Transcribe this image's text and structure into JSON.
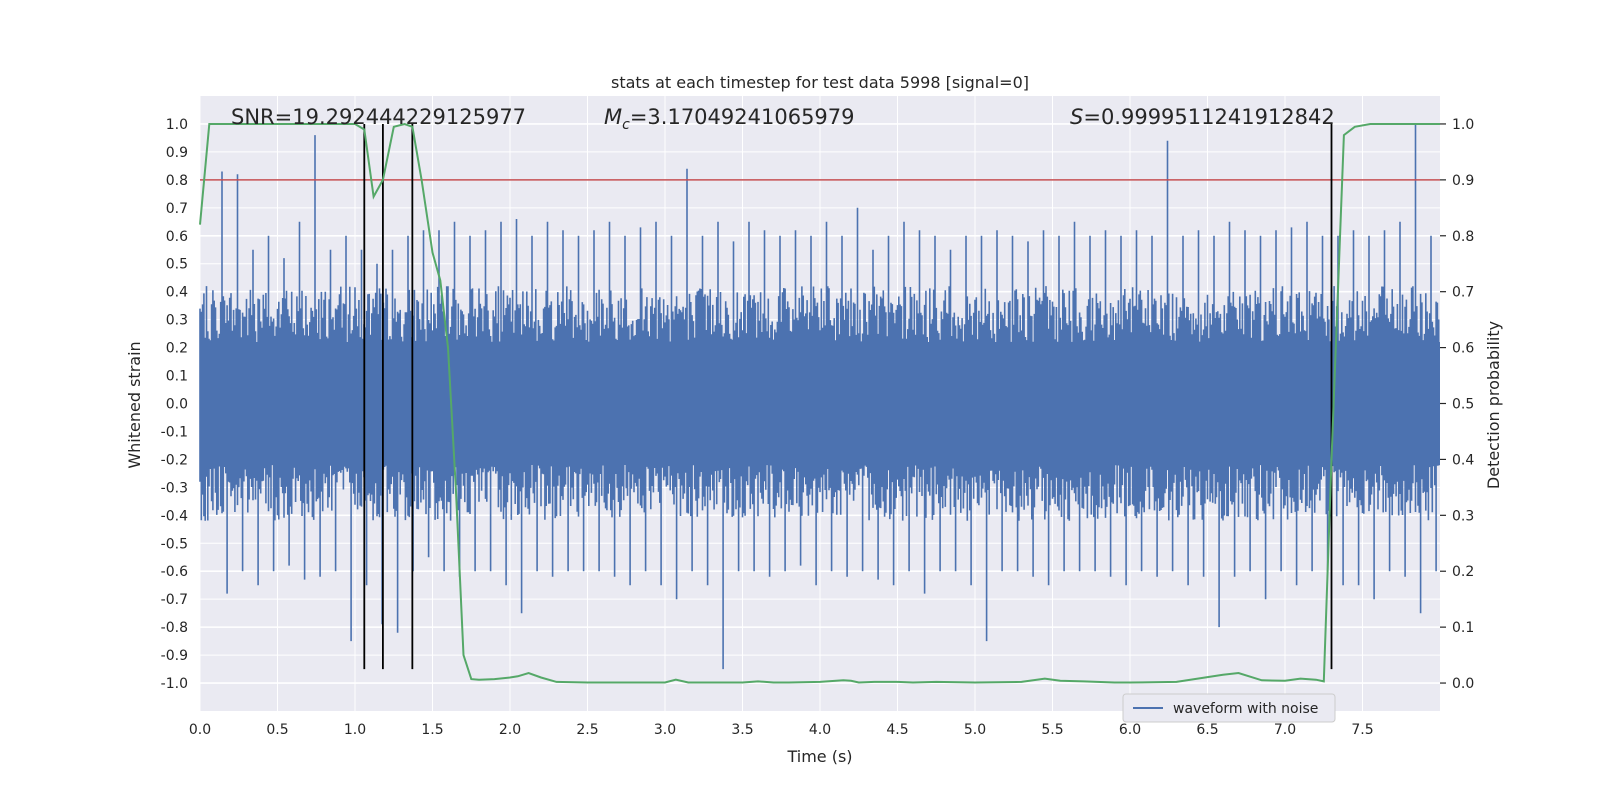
{
  "chart_data": {
    "type": "line",
    "title": "stats at each timestep for test data 5998 [signal=0]",
    "xlabel": "Time (s)",
    "ylabel": "Whitened strain",
    "ylabel_right": "Detection probability",
    "xlim": [
      0.0,
      8.0
    ],
    "ylim": [
      -1.1,
      1.1
    ],
    "ylim_right": [
      -0.05,
      1.05
    ],
    "x_ticks": [
      "0.0",
      "0.5",
      "1.0",
      "1.5",
      "2.0",
      "2.5",
      "3.0",
      "3.5",
      "4.0",
      "4.5",
      "5.0",
      "5.5",
      "6.0",
      "6.5",
      "7.0",
      "7.5"
    ],
    "y_ticks": [
      "1.0",
      "0.9",
      "0.8",
      "0.7",
      "0.6",
      "0.5",
      "0.4",
      "0.3",
      "0.2",
      "0.1",
      "0.0",
      "-0.1",
      "-0.2",
      "-0.3",
      "-0.4",
      "-0.5",
      "-0.6",
      "-0.7",
      "-0.8",
      "-0.9",
      "-1.0"
    ],
    "y_ticks_right": [
      "1.0",
      "0.9",
      "0.8",
      "0.7",
      "0.6",
      "0.5",
      "0.4",
      "0.3",
      "0.2",
      "0.1",
      "0.0"
    ],
    "annotations": {
      "snr": "SNR=19.292444229125977",
      "mc_symbol": "M",
      "mc_sub": "c",
      "mc_value": "=3.17049241065979",
      "s_symbol": "S",
      "s_value": "=0.9999511241912842"
    },
    "legend": {
      "label": "waveform with noise",
      "location": "lower right"
    },
    "threshold": {
      "value": 0.9,
      "axis": "right",
      "color": "#c44e52"
    },
    "vlines": [
      1.06,
      1.18,
      1.37,
      7.3
    ],
    "vline_ymin": -0.95,
    "vline_ymax": 1.0,
    "series": [
      {
        "name": "waveform with noise",
        "axis": "left",
        "color": "#4c72b0",
        "envelope_max": [
          0.42,
          0.83,
          0.82,
          0.55,
          0.6,
          0.52,
          0.65,
          0.96,
          0.55,
          0.6,
          0.55,
          0.5,
          0.55,
          0.6,
          0.62,
          0.62,
          0.65,
          0.6,
          0.62,
          0.65,
          0.66,
          0.6,
          0.65,
          0.62,
          0.6,
          0.62,
          0.65,
          0.6,
          0.63,
          0.65,
          0.6,
          0.84,
          0.6,
          0.65,
          0.58,
          0.65,
          0.62,
          0.6,
          0.62,
          0.6,
          0.65,
          0.6,
          0.7,
          0.55,
          0.6,
          0.65,
          0.62,
          0.6,
          0.55,
          0.6,
          0.6,
          0.62,
          0.6,
          0.58,
          0.62,
          0.6,
          0.65,
          0.6,
          0.62,
          0.6,
          0.62,
          0.6,
          0.94,
          0.6,
          0.62,
          0.6,
          0.65,
          0.62,
          0.6,
          0.62,
          0.63,
          0.65,
          0.6,
          0.6,
          0.62,
          0.6,
          0.62,
          0.65,
          1.0,
          0.6
        ],
        "envelope_min": [
          -0.35,
          -0.68,
          -0.6,
          -0.65,
          -0.6,
          -0.58,
          -0.63,
          -0.62,
          -0.6,
          -0.85,
          -0.65,
          -0.79,
          -0.82,
          -0.6,
          -0.55,
          -0.6,
          -0.62,
          -0.6,
          -0.6,
          -0.65,
          -0.75,
          -0.6,
          -0.62,
          -0.6,
          -0.6,
          -0.6,
          -0.62,
          -0.65,
          -0.6,
          -0.65,
          -0.7,
          -0.6,
          -0.65,
          -0.95,
          -0.6,
          -0.6,
          -0.62,
          -0.6,
          -0.58,
          -0.65,
          -0.6,
          -0.62,
          -0.6,
          -0.63,
          -0.65,
          -0.6,
          -0.68,
          -0.6,
          -0.6,
          -0.65,
          -0.85,
          -0.6,
          -0.6,
          -0.62,
          -0.65,
          -0.6,
          -0.6,
          -0.6,
          -0.62,
          -0.65,
          -0.6,
          -0.62,
          -0.6,
          -0.65,
          -0.62,
          -0.8,
          -0.62,
          -0.6,
          -0.7,
          -0.6,
          -0.65,
          -0.6,
          -0.6,
          -0.65,
          -0.65,
          -0.7,
          -0.6,
          -0.62,
          -0.75,
          -0.6
        ],
        "core_amplitude": 0.4
      },
      {
        "name": "detection probability",
        "axis": "right",
        "color": "#55a868",
        "x": [
          0.0,
          0.06,
          0.12,
          0.2,
          0.3,
          0.4,
          0.5,
          0.6,
          0.7,
          0.8,
          0.9,
          1.0,
          1.06,
          1.12,
          1.18,
          1.25,
          1.32,
          1.37,
          1.43,
          1.5,
          1.55,
          1.6,
          1.65,
          1.7,
          1.75,
          1.8,
          1.9,
          2.0,
          2.05,
          2.12,
          2.2,
          2.3,
          2.5,
          2.8,
          3.0,
          3.07,
          3.15,
          3.3,
          3.5,
          3.6,
          3.7,
          3.8,
          4.0,
          4.15,
          4.2,
          4.25,
          4.35,
          4.5,
          4.6,
          4.75,
          5.0,
          5.3,
          5.45,
          5.55,
          5.7,
          5.9,
          6.0,
          6.3,
          6.6,
          6.7,
          6.85,
          7.0,
          7.1,
          7.2,
          7.25,
          7.3,
          7.38,
          7.45,
          7.55,
          7.65,
          7.75,
          7.85,
          7.95,
          8.0
        ],
        "y": [
          0.82,
          1.0,
          1.0,
          1.0,
          1.0,
          1.0,
          1.0,
          1.0,
          1.0,
          1.0,
          1.0,
          1.0,
          0.99,
          0.87,
          0.9,
          0.995,
          1.0,
          0.995,
          0.9,
          0.77,
          0.72,
          0.6,
          0.35,
          0.05,
          0.007,
          0.006,
          0.007,
          0.01,
          0.012,
          0.018,
          0.01,
          0.002,
          0.001,
          0.001,
          0.001,
          0.006,
          0.001,
          0.001,
          0.001,
          0.003,
          0.001,
          0.001,
          0.002,
          0.005,
          0.004,
          0.001,
          0.002,
          0.002,
          0.001,
          0.002,
          0.001,
          0.002,
          0.008,
          0.004,
          0.003,
          0.001,
          0.001,
          0.002,
          0.015,
          0.018,
          0.005,
          0.004,
          0.008,
          0.006,
          0.003,
          0.4,
          0.98,
          0.995,
          1.0,
          1.0,
          1.0,
          1.0,
          1.0,
          1.0
        ]
      }
    ]
  }
}
